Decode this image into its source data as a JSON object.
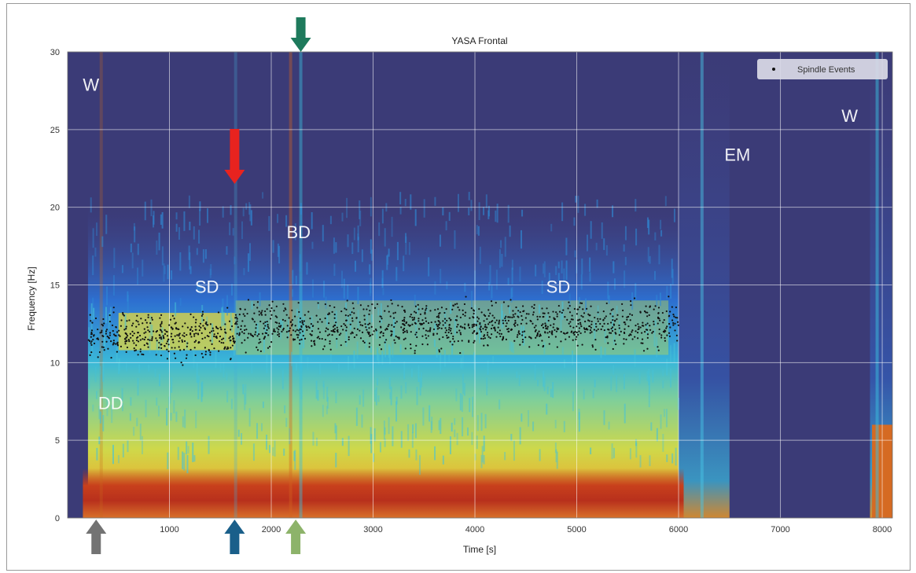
{
  "chart_data": {
    "type": "heatmap",
    "title": "YASA Frontal",
    "xlabel": "Time [s]",
    "ylabel": "Frequency [Hz]",
    "xlim": [
      0,
      8100
    ],
    "ylim": [
      0,
      30
    ],
    "x_ticks": [
      1000,
      2000,
      3000,
      4000,
      5000,
      6000,
      7000,
      8000
    ],
    "y_ticks": [
      0,
      5,
      10,
      15,
      20,
      25,
      30
    ],
    "x_tick_labels": [
      "1000",
      "2000",
      "3000",
      "4000",
      "5000",
      "6000",
      "7000",
      "8000"
    ],
    "y_tick_labels": [
      "0",
      "5",
      "10",
      "15",
      "20",
      "25",
      "30"
    ],
    "grid": true,
    "legend": {
      "placement": "top-right",
      "entries": [
        "Spindle Events"
      ]
    },
    "series": [
      {
        "name": "Spindle Events",
        "kind": "scatter",
        "time_range": [
          200,
          6000
        ],
        "frequency_range": [
          10,
          14
        ]
      }
    ],
    "stage_labels": [
      {
        "text": "W",
        "time": 150,
        "freq": 27.5
      },
      {
        "text": "SD",
        "time": 1250,
        "freq": 14.5
      },
      {
        "text": "BD",
        "time": 2150,
        "freq": 18
      },
      {
        "text": "SD",
        "time": 4700,
        "freq": 14.5
      },
      {
        "text": "EM",
        "time": 6450,
        "freq": 23
      },
      {
        "text": "W",
        "time": 7600,
        "freq": 25.5
      },
      {
        "text": "DD",
        "time": 300,
        "freq": 7
      }
    ],
    "arrows": [
      {
        "color": "#e8231f",
        "direction": "down",
        "time": 1640,
        "freq": 21.5
      },
      {
        "color": "#1e7a5c",
        "direction": "down",
        "time": 2290,
        "freq": 30
      },
      {
        "color": "#737373",
        "direction": "up",
        "time": 280
      },
      {
        "color": "#1a5f8a",
        "direction": "up",
        "time": 1640
      },
      {
        "color": "#8db36a",
        "direction": "up",
        "time": 2240
      }
    ]
  },
  "colors": {
    "background": "#3b3b77",
    "low": "#40468f",
    "mid_low": "#2d6fd0",
    "cyan": "#3ac0e0",
    "yellow": "#e8e040",
    "orange": "#e08a20",
    "red": "#b8301c",
    "grid": "#ffffff"
  }
}
